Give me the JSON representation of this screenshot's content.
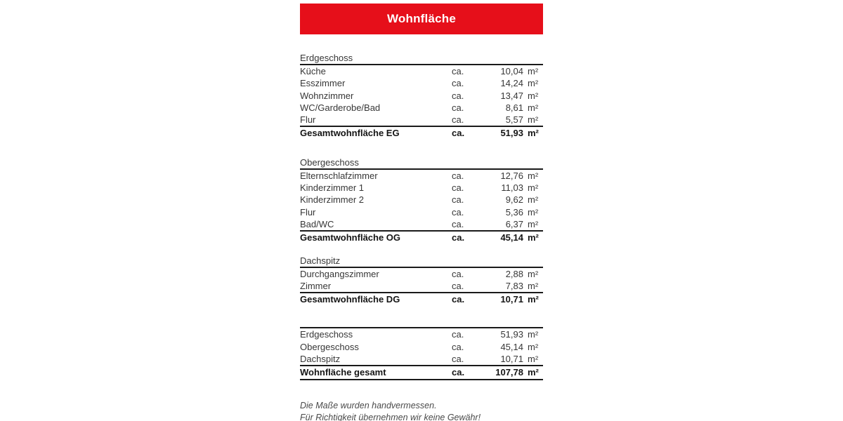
{
  "colors": {
    "banner_red": "#e60f1a",
    "banner_text": "#ffffff",
    "body_text": "#373737",
    "total_text": "#141414",
    "rule_line": "#1a1a1a"
  },
  "banner": {
    "title": "Wohnfläche"
  },
  "table": {
    "sections": [
      {
        "heading": "Erdgeschoss",
        "rows": [
          {
            "label": "Küche",
            "ca": "ca.",
            "value": "10,04",
            "unit": "m²"
          },
          {
            "label": "Esszimmer",
            "ca": "ca.",
            "value": "14,24",
            "unit": "m²"
          },
          {
            "label": "Wohnzimmer",
            "ca": "ca.",
            "value": "13,47",
            "unit": "m²"
          },
          {
            "label": "WC/Garderobe/Bad",
            "ca": "ca.",
            "value": "8,61",
            "unit": "m²"
          },
          {
            "label": "Flur",
            "ca": "ca.",
            "value": "5,57",
            "unit": "m²"
          }
        ],
        "total": {
          "label": "Gesamtwohnfläche EG",
          "ca": "ca.",
          "value": "51,93",
          "unit": "m²"
        }
      },
      {
        "heading": "Obergeschoss",
        "rows": [
          {
            "label": "Elternschlafzimmer",
            "ca": "ca.",
            "value": "12,76",
            "unit": "m²"
          },
          {
            "label": "Kinderzimmer 1",
            "ca": "ca.",
            "value": "11,03",
            "unit": "m²"
          },
          {
            "label": "Kinderzimmer 2",
            "ca": "ca.",
            "value": "9,62",
            "unit": "m²"
          },
          {
            "label": "Flur",
            "ca": "ca.",
            "value": "5,36",
            "unit": "m²"
          },
          {
            "label": "Bad/WC",
            "ca": "ca.",
            "value": "6,37",
            "unit": "m²"
          }
        ],
        "total": {
          "label": "Gesamtwohnfläche OG",
          "ca": "ca.",
          "value": "45,14",
          "unit": "m²"
        }
      },
      {
        "heading": "Dachspitz",
        "rows": [
          {
            "label": "Durchgangszimmer",
            "ca": "ca.",
            "value": "2,88",
            "unit": "m²"
          },
          {
            "label": "Zimmer",
            "ca": "ca.",
            "value": "7,83",
            "unit": "m²"
          }
        ],
        "total": {
          "label": "Gesamtwohnfläche DG",
          "ca": "ca.",
          "value": "10,71",
          "unit": "m²"
        }
      },
      {
        "grand": true,
        "rows": [
          {
            "label": "Erdgeschoss",
            "ca": "ca.",
            "value": "51,93",
            "unit": "m²"
          },
          {
            "label": "Obergeschoss",
            "ca": "ca.",
            "value": "45,14",
            "unit": "m²"
          },
          {
            "label": "Dachspitz",
            "ca": "ca.",
            "value": "10,71",
            "unit": "m²"
          }
        ],
        "total": {
          "label": "Wohnfläche gesamt",
          "ca": "ca.",
          "value": "107,78",
          "unit": "m²"
        }
      }
    ]
  },
  "footer": {
    "lines": [
      "Die Maße wurden handvermessen.",
      "Für Richtigkeit übernehmen wir keine Gewähr!"
    ]
  }
}
